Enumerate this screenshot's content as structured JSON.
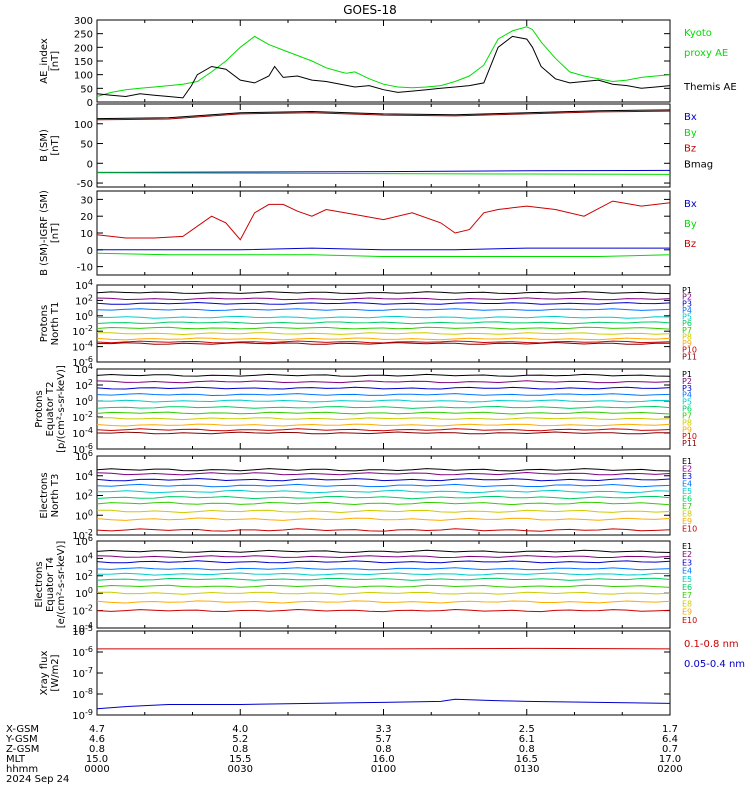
{
  "title": "GOES-18",
  "colors": {
    "black": "#000000",
    "green": "#00dd00",
    "blue": "#0000cc",
    "red": "#cc0000",
    "dark_red": "#990000",
    "bands": [
      "#000000",
      "#800080",
      "#0000cc",
      "#0077ff",
      "#00cccc",
      "#00cc66",
      "#33cc00",
      "#cccc00",
      "#ffaa00",
      "#ff6600",
      "#cc0000",
      "#880000"
    ]
  },
  "time_axis": {
    "range": [
      "00:00",
      "02:00"
    ],
    "ticks": [
      "0000",
      "0030",
      "0100",
      "0130",
      "0200"
    ]
  },
  "ephemeris": {
    "rows": [
      {
        "label": "X-GSM",
        "values": [
          "4.7",
          "4.0",
          "3.3",
          "2.5",
          "1.7"
        ]
      },
      {
        "label": "Y-GSM",
        "values": [
          "4.6",
          "5.2",
          "5.7",
          "6.1",
          "6.4"
        ]
      },
      {
        "label": "Z-GSM",
        "values": [
          "0.8",
          "0.8",
          "0.8",
          "0.8",
          "0.7"
        ]
      },
      {
        "label": "MLT",
        "values": [
          "15.0",
          "15.5",
          "16.0",
          "16.5",
          "17.0"
        ]
      },
      {
        "label": "hhmm",
        "values": [
          "0000",
          "0030",
          "0100",
          "0130",
          "0200"
        ]
      }
    ],
    "date": "2024 Sep 24"
  },
  "chart_data": [
    {
      "type": "line",
      "panel": "AE index",
      "ylabel": [
        "AE_index",
        "[nT]"
      ],
      "yscale": "linear",
      "ylim": [
        0,
        300
      ],
      "yticks": [
        "0",
        "50",
        "100",
        "150",
        "200",
        "250",
        "300"
      ],
      "legend": [
        {
          "text": [
            "Kyoto",
            "proxy AE"
          ],
          "color": "green"
        },
        {
          "text": [
            "Themis AE"
          ],
          "color": "black"
        }
      ],
      "series": [
        {
          "name": "Kyoto proxy AE",
          "color": "green",
          "x": [
            0,
            0.05,
            0.1,
            0.15,
            0.2,
            0.25,
            0.3,
            0.35,
            0.4,
            0.45,
            0.5,
            0.55,
            0.6,
            0.65,
            0.7,
            0.75,
            0.8,
            0.85,
            0.87,
            0.9,
            0.95,
            1.0,
            1.05,
            1.1,
            1.15,
            1.2,
            1.25,
            1.3,
            1.35,
            1.4,
            1.45,
            1.5,
            1.52,
            1.55,
            1.6,
            1.65,
            1.7,
            1.75,
            1.8,
            1.85,
            1.9,
            1.95,
            2.0
          ],
          "y": [
            20,
            35,
            45,
            50,
            55,
            60,
            65,
            75,
            110,
            150,
            200,
            240,
            210,
            190,
            170,
            150,
            125,
            110,
            105,
            110,
            85,
            65,
            55,
            52,
            55,
            60,
            75,
            95,
            135,
            230,
            260,
            275,
            265,
            220,
            160,
            110,
            95,
            85,
            75,
            80,
            90,
            95,
            100
          ]
        },
        {
          "name": "Themis AE",
          "color": "black",
          "x": [
            0,
            0.05,
            0.1,
            0.15,
            0.2,
            0.25,
            0.3,
            0.33,
            0.35,
            0.4,
            0.45,
            0.5,
            0.55,
            0.6,
            0.62,
            0.65,
            0.7,
            0.75,
            0.8,
            0.85,
            0.9,
            0.95,
            1.0,
            1.05,
            1.1,
            1.15,
            1.2,
            1.25,
            1.3,
            1.35,
            1.4,
            1.45,
            1.5,
            1.52,
            1.55,
            1.6,
            1.65,
            1.7,
            1.75,
            1.8,
            1.85,
            1.9,
            1.95,
            2.0
          ],
          "y": [
            30,
            25,
            20,
            30,
            25,
            20,
            15,
            60,
            100,
            130,
            120,
            80,
            70,
            95,
            130,
            90,
            95,
            80,
            75,
            65,
            55,
            60,
            45,
            35,
            40,
            45,
            50,
            55,
            60,
            70,
            200,
            240,
            230,
            200,
            130,
            85,
            70,
            75,
            80,
            65,
            60,
            50,
            55,
            60
          ]
        }
      ]
    },
    {
      "type": "line",
      "panel": "B (SM)",
      "ylabel": [
        "B (SM)",
        "[nT]"
      ],
      "yscale": "linear",
      "ylim": [
        -60,
        150
      ],
      "yticks": [
        "-50",
        "0",
        "50",
        "100"
      ],
      "yticks_values": [
        -50,
        0,
        50,
        100
      ],
      "legend": [
        {
          "text": [
            "Bx"
          ],
          "color": "blue"
        },
        {
          "text": [
            "By"
          ],
          "color": "green"
        },
        {
          "text": [
            "Bz"
          ],
          "color": "red"
        },
        {
          "text": [
            "Bmag"
          ],
          "color": "black"
        }
      ],
      "series": [
        {
          "name": "Bx",
          "color": "blue",
          "x": [
            0,
            0.5,
            1.0,
            1.5,
            2.0
          ],
          "y": [
            -23,
            -22,
            -21,
            -19,
            -18
          ]
        },
        {
          "name": "By",
          "color": "green",
          "x": [
            0,
            0.5,
            1.0,
            1.5,
            2.0
          ],
          "y": [
            -24,
            -25,
            -26,
            -27,
            -28
          ]
        },
        {
          "name": "Bz",
          "color": "dark_red",
          "x": [
            0,
            0.25,
            0.5,
            0.75,
            1.0,
            1.25,
            1.5,
            1.75,
            2.0
          ],
          "y": [
            110,
            112,
            125,
            128,
            122,
            120,
            125,
            130,
            132
          ]
        },
        {
          "name": "Bmag",
          "color": "black",
          "x": [
            0,
            0.25,
            0.5,
            0.75,
            1.0,
            1.25,
            1.5,
            1.75,
            2.0
          ],
          "y": [
            113,
            115,
            128,
            131,
            125,
            123,
            128,
            133,
            135
          ]
        }
      ]
    },
    {
      "type": "line",
      "panel": "B (SM)-IGRF (SM)",
      "ylabel": [
        "B (SM)-IGRF (SM)",
        "[nT]"
      ],
      "yscale": "linear",
      "ylim": [
        -15,
        35
      ],
      "yticks": [
        "-10",
        "0",
        "10",
        "20",
        "30"
      ],
      "yticks_values": [
        -10,
        0,
        10,
        20,
        30
      ],
      "legend": [
        {
          "text": [
            "Bx"
          ],
          "color": "blue"
        },
        {
          "text": [
            "By"
          ],
          "color": "green"
        },
        {
          "text": [
            "Bz"
          ],
          "color": "red"
        }
      ],
      "series": [
        {
          "name": "Bz",
          "color": "red",
          "x": [
            0,
            0.1,
            0.2,
            0.3,
            0.4,
            0.45,
            0.5,
            0.55,
            0.6,
            0.65,
            0.7,
            0.75,
            0.8,
            0.9,
            1.0,
            1.1,
            1.2,
            1.25,
            1.3,
            1.35,
            1.4,
            1.45,
            1.5,
            1.6,
            1.7,
            1.8,
            1.9,
            2.0
          ],
          "y": [
            9,
            7,
            7,
            8,
            20,
            16,
            6,
            22,
            27,
            27,
            23,
            20,
            24,
            21,
            18,
            22,
            16,
            10,
            12,
            22,
            24,
            25,
            26,
            24,
            20,
            29,
            26,
            28
          ]
        },
        {
          "name": "Bx",
          "color": "blue",
          "x": [
            0,
            0.25,
            0.5,
            0.75,
            1.0,
            1.25,
            1.5,
            1.75,
            2.0
          ],
          "y": [
            0,
            0,
            0,
            1,
            0,
            0,
            1,
            1,
            1
          ]
        },
        {
          "name": "By",
          "color": "green",
          "x": [
            0,
            0.25,
            0.5,
            0.75,
            1.0,
            1.25,
            1.5,
            1.75,
            2.0
          ],
          "y": [
            -2,
            -3,
            -3,
            -3,
            -4,
            -4,
            -4,
            -4,
            -3
          ]
        }
      ]
    },
    {
      "type": "line",
      "panel": "Protons North T1",
      "ylabel": [
        "Protons",
        "North T1"
      ],
      "yscale": "log",
      "ylim_exp": [
        -6,
        4
      ],
      "yticks": [
        "10^4",
        "10^2",
        "10^0",
        "10^-2",
        "10^-4",
        "10^-6"
      ],
      "yticks_exp": [
        4,
        2,
        0,
        -2,
        -4,
        -6
      ],
      "channels": [
        "P1",
        "P2",
        "P3",
        "P4",
        "P5",
        "P6",
        "P7",
        "P8",
        "P9",
        "P10",
        "P11"
      ],
      "levels_exp": [
        3.0,
        2.2,
        1.6,
        0.8,
        -0.2,
        -0.9,
        -1.6,
        -2.3,
        -3.0,
        -3.4,
        -3.6
      ],
      "channel_colors": [
        "#000000",
        "#800080",
        "#0000cc",
        "#0077ff",
        "#00cccc",
        "#00cc66",
        "#33cc00",
        "#cccc00",
        "#ffaa00",
        "#cc0000",
        "#880000"
      ]
    },
    {
      "type": "line",
      "panel": "Protons Equator T2",
      "ylabel": [
        "Protons",
        "Equator T2",
        "[p/(cm²-s-sr-keV)]"
      ],
      "yscale": "log",
      "ylim_exp": [
        -6,
        4
      ],
      "yticks": [
        "10^4",
        "10^2",
        "10^0",
        "10^-2",
        "10^-4",
        "10^-6"
      ],
      "yticks_exp": [
        4,
        2,
        0,
        -2,
        -4,
        -6
      ],
      "channels": [
        "P1",
        "P2",
        "P3",
        "P4",
        "P5",
        "P6",
        "P7",
        "P8",
        "P9",
        "P10",
        "P11"
      ],
      "levels_exp": [
        3.2,
        2.4,
        1.6,
        0.8,
        0.0,
        -0.8,
        -1.5,
        -2.2,
        -3.0,
        -3.6,
        -4.0
      ],
      "channel_colors": [
        "#000000",
        "#800080",
        "#0000cc",
        "#0077ff",
        "#00cccc",
        "#00cc66",
        "#33cc00",
        "#cccc00",
        "#ffaa00",
        "#cc0000",
        "#880000"
      ]
    },
    {
      "type": "line",
      "panel": "Electrons North T3",
      "ylabel": [
        "Electrons",
        "North T3"
      ],
      "yscale": "log",
      "ylim_exp": [
        -2,
        6
      ],
      "yticks": [
        "10^6",
        "10^4",
        "10^2",
        "10^0",
        "10^-2"
      ],
      "yticks_exp": [
        6,
        4,
        2,
        0,
        -2
      ],
      "channels": [
        "E1",
        "E2",
        "E3",
        "E4",
        "E5",
        "E6",
        "E7",
        "E8",
        "E9",
        "E10"
      ],
      "levels_exp": [
        4.6,
        4.2,
        3.6,
        3.0,
        2.4,
        1.8,
        1.2,
        0.4,
        -0.4,
        -1.5
      ],
      "channel_colors": [
        "#000000",
        "#800080",
        "#0000cc",
        "#0077ff",
        "#00cccc",
        "#00cc66",
        "#33cc00",
        "#cccc00",
        "#ffaa00",
        "#cc0000"
      ]
    },
    {
      "type": "line",
      "panel": "Electrons Equator T4",
      "ylabel": [
        "Electrons",
        "Equator T4",
        "[e/(cm²-s-sr-keV)]"
      ],
      "yscale": "log",
      "ylim_exp": [
        -4,
        6
      ],
      "yticks": [
        "10^6",
        "10^4",
        "10^2",
        "10^0",
        "10^-2",
        "10^-4"
      ],
      "yticks_exp": [
        6,
        4,
        2,
        0,
        -2,
        -4
      ],
      "channels": [
        "E1",
        "E2",
        "E3",
        "E4",
        "E5",
        "E6",
        "E7",
        "E8",
        "E9",
        "E10"
      ],
      "levels_exp": [
        4.8,
        4.2,
        3.6,
        2.8,
        2.2,
        1.6,
        0.8,
        0.0,
        -1.0,
        -2.0
      ],
      "channel_colors": [
        "#000000",
        "#800080",
        "#0000cc",
        "#0077ff",
        "#00cccc",
        "#00cc66",
        "#33cc00",
        "#cccc00",
        "#ffaa00",
        "#cc0000"
      ]
    },
    {
      "type": "line",
      "panel": "Xray flux",
      "ylabel": [
        "Xray flux",
        "[W/m2]"
      ],
      "yscale": "log",
      "ylim_exp": [
        -9,
        -5
      ],
      "yticks": [
        "10^-5",
        "10^-6",
        "10^-7",
        "10^-8",
        "10^-9"
      ],
      "yticks_exp": [
        -5,
        -6,
        -7,
        -8,
        -9
      ],
      "legend": [
        {
          "text": [
            "0.1-0.8 nm"
          ],
          "color": "red"
        },
        {
          "text": [
            "0.05-0.4 nm"
          ],
          "color": "blue"
        }
      ],
      "series": [
        {
          "name": "0.1-0.8 nm",
          "color": "red",
          "x": [
            0,
            0.5,
            1.0,
            1.5,
            2.0
          ],
          "y_exp": [
            -5.85,
            -5.85,
            -5.85,
            -5.83,
            -5.85
          ]
        },
        {
          "name": "0.05-0.4 nm",
          "color": "blue",
          "x": [
            0,
            0.1,
            0.25,
            0.5,
            0.75,
            1.0,
            1.2,
            1.25,
            1.35,
            1.5,
            1.75,
            2.0
          ],
          "y_exp": [
            -8.7,
            -8.6,
            -8.5,
            -8.5,
            -8.45,
            -8.4,
            -8.35,
            -8.25,
            -8.3,
            -8.35,
            -8.4,
            -8.45
          ]
        }
      ]
    }
  ]
}
